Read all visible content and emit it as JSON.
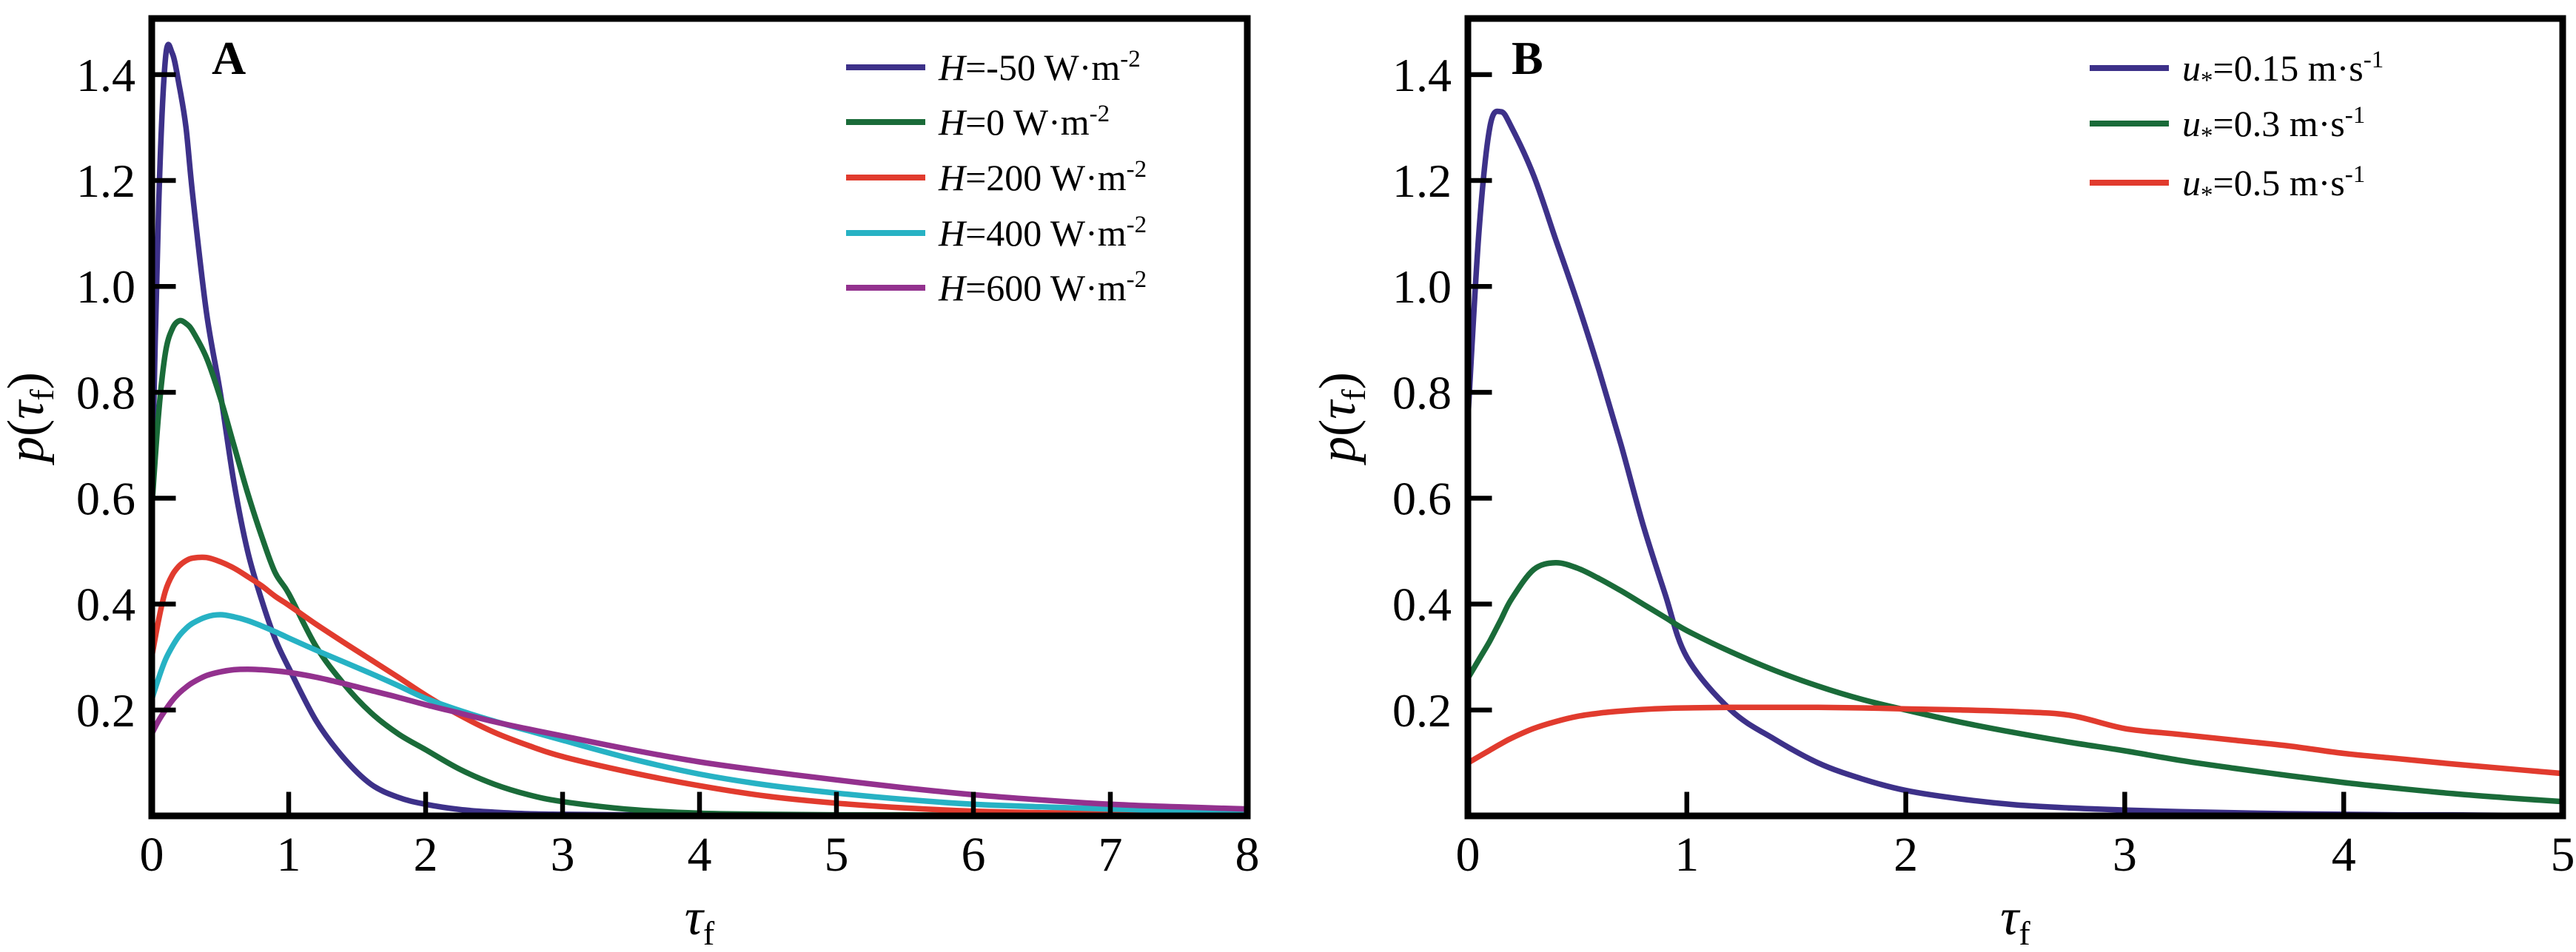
{
  "figure": {
    "background": "#ffffff",
    "frame_color": "#000000",
    "text_color": "#000000"
  },
  "chart_data": [
    {
      "type": "line",
      "panel_label": "A",
      "title": "",
      "xlabel": "τf",
      "ylabel": "p(τf)",
      "xlabel_parts": [
        [
          "i",
          "τ"
        ],
        [
          "sub",
          "f"
        ]
      ],
      "ylabel_parts": [
        [
          "i",
          "p"
        ],
        [
          "n",
          "("
        ],
        [
          "i",
          "τ"
        ],
        [
          "sub",
          "f"
        ],
        [
          "n",
          ")"
        ]
      ],
      "xlim": [
        0,
        8
      ],
      "ylim": [
        0,
        1.506
      ],
      "x_ticks": [
        0,
        1,
        2,
        3,
        4,
        5,
        6,
        7,
        8
      ],
      "x_tick_labels": [
        "0",
        "1",
        "2",
        "3",
        "4",
        "5",
        "6",
        "7",
        "8"
      ],
      "y_ticks": [
        0.2,
        0.4,
        0.6,
        0.8,
        1.0,
        1.2,
        1.4
      ],
      "y_tick_labels": [
        "0.2",
        "0.4",
        "0.6",
        "0.8",
        "1.0",
        "1.2",
        "1.4"
      ],
      "grid": false,
      "legend_position": "top-right-inside",
      "series": [
        {
          "name": "H=-50 W·m⁻²",
          "label_parts": [
            [
              "i",
              "H"
            ],
            [
              "n",
              "=-50 W·m"
            ],
            [
              "sup",
              "-2"
            ]
          ],
          "color": "#3d3189",
          "x": [
            0,
            0.05,
            0.1,
            0.15,
            0.2,
            0.25,
            0.3,
            0.4,
            0.5,
            0.6,
            0.7,
            0.8,
            0.9,
            1.0,
            1.2,
            1.4,
            1.6,
            1.8,
            2.0,
            2.25,
            2.5,
            2.75,
            3.0,
            3.5,
            4.0,
            4.5,
            5.0,
            5.5,
            6.0,
            6.5,
            7.0,
            7.5,
            8.0
          ],
          "y": [
            0.6,
            1.15,
            1.43,
            1.44,
            1.38,
            1.3,
            1.17,
            0.95,
            0.8,
            0.63,
            0.5,
            0.41,
            0.335,
            0.28,
            0.18,
            0.11,
            0.06,
            0.035,
            0.022,
            0.012,
            0.007,
            0.004,
            0.003,
            0.002,
            0.001,
            0.001,
            0.001,
            0.001,
            0.001,
            0.001,
            0.001,
            0.001,
            0.001
          ]
        },
        {
          "name": "H=0 W·m⁻²",
          "label_parts": [
            [
              "i",
              "H"
            ],
            [
              "n",
              "=0 W·m"
            ],
            [
              "sup",
              "-2"
            ]
          ],
          "color": "#1a6b39",
          "x": [
            0,
            0.05,
            0.1,
            0.15,
            0.2,
            0.25,
            0.3,
            0.4,
            0.5,
            0.6,
            0.7,
            0.8,
            0.9,
            1.0,
            1.2,
            1.4,
            1.6,
            1.8,
            2.0,
            2.25,
            2.5,
            2.75,
            3.0,
            3.5,
            4.0,
            4.5,
            5.0,
            5.5,
            6.0,
            6.5,
            7.0,
            7.5,
            8.0
          ],
          "y": [
            0.58,
            0.76,
            0.875,
            0.92,
            0.935,
            0.93,
            0.915,
            0.865,
            0.79,
            0.7,
            0.61,
            0.53,
            0.46,
            0.42,
            0.32,
            0.25,
            0.195,
            0.155,
            0.125,
            0.088,
            0.06,
            0.04,
            0.027,
            0.012,
            0.005,
            0.003,
            0.002,
            0.002,
            0.001,
            0.001,
            0.001,
            0.001,
            0.001
          ]
        },
        {
          "name": "H=200 W·m⁻²",
          "label_parts": [
            [
              "i",
              "H"
            ],
            [
              "n",
              "=200 W·m"
            ],
            [
              "sup",
              "-2"
            ]
          ],
          "color": "#e13b2e",
          "x": [
            0,
            0.05,
            0.1,
            0.15,
            0.2,
            0.25,
            0.3,
            0.4,
            0.5,
            0.6,
            0.7,
            0.8,
            0.9,
            1.0,
            1.2,
            1.4,
            1.6,
            1.8,
            2.0,
            2.25,
            2.5,
            2.75,
            3.0,
            3.5,
            4.0,
            4.5,
            5.0,
            5.5,
            6.0,
            6.5,
            7.0,
            7.5,
            8.0
          ],
          "y": [
            0.3,
            0.37,
            0.425,
            0.455,
            0.472,
            0.482,
            0.487,
            0.488,
            0.48,
            0.468,
            0.452,
            0.435,
            0.415,
            0.398,
            0.362,
            0.328,
            0.295,
            0.262,
            0.228,
            0.19,
            0.158,
            0.133,
            0.112,
            0.082,
            0.057,
            0.037,
            0.024,
            0.015,
            0.009,
            0.006,
            0.005,
            0.004,
            0.003
          ]
        },
        {
          "name": "H=400 W·m⁻²",
          "label_parts": [
            [
              "i",
              "H"
            ],
            [
              "n",
              "=400 W·m"
            ],
            [
              "sup",
              "-2"
            ]
          ],
          "color": "#27b2c4",
          "x": [
            0,
            0.05,
            0.1,
            0.15,
            0.2,
            0.25,
            0.3,
            0.4,
            0.5,
            0.6,
            0.7,
            0.8,
            0.9,
            1.0,
            1.2,
            1.4,
            1.6,
            1.8,
            2.0,
            2.25,
            2.5,
            2.75,
            3.0,
            3.5,
            4.0,
            4.5,
            5.0,
            5.5,
            6.0,
            6.5,
            7.0,
            7.5,
            8.0
          ],
          "y": [
            0.22,
            0.26,
            0.295,
            0.32,
            0.34,
            0.354,
            0.364,
            0.376,
            0.38,
            0.376,
            0.369,
            0.359,
            0.348,
            0.336,
            0.313,
            0.291,
            0.269,
            0.246,
            0.222,
            0.199,
            0.179,
            0.161,
            0.143,
            0.108,
            0.079,
            0.058,
            0.043,
            0.031,
            0.022,
            0.017,
            0.013,
            0.01,
            0.008
          ]
        },
        {
          "name": "H=600 W·m⁻²",
          "label_parts": [
            [
              "i",
              "H"
            ],
            [
              "n",
              "=600 W·m"
            ],
            [
              "sup",
              "-2"
            ]
          ],
          "color": "#93318e",
          "x": [
            0,
            0.05,
            0.1,
            0.15,
            0.2,
            0.25,
            0.3,
            0.4,
            0.5,
            0.6,
            0.7,
            0.8,
            0.9,
            1.0,
            1.2,
            1.4,
            1.6,
            1.8,
            2.0,
            2.25,
            2.5,
            2.75,
            3.0,
            3.5,
            4.0,
            4.5,
            5.0,
            5.5,
            6.0,
            6.5,
            7.0,
            7.5,
            8.0
          ],
          "y": [
            0.155,
            0.18,
            0.2,
            0.218,
            0.232,
            0.243,
            0.252,
            0.265,
            0.272,
            0.276,
            0.277,
            0.276,
            0.274,
            0.271,
            0.262,
            0.25,
            0.237,
            0.224,
            0.21,
            0.194,
            0.178,
            0.164,
            0.151,
            0.125,
            0.102,
            0.084,
            0.068,
            0.053,
            0.04,
            0.03,
            0.022,
            0.017,
            0.013
          ]
        }
      ]
    },
    {
      "type": "line",
      "panel_label": "B",
      "title": "",
      "xlabel": "τf",
      "ylabel": "p(τf)",
      "xlabel_parts": [
        [
          "i",
          "τ"
        ],
        [
          "sub",
          "f"
        ]
      ],
      "ylabel_parts": [
        [
          "i",
          "p"
        ],
        [
          "n",
          "("
        ],
        [
          "i",
          "τ"
        ],
        [
          "sub",
          "f"
        ],
        [
          "n",
          ")"
        ]
      ],
      "xlim": [
        0,
        5
      ],
      "ylim": [
        0,
        1.506
      ],
      "x_ticks": [
        0,
        1,
        2,
        3,
        4,
        5
      ],
      "x_tick_labels": [
        "0",
        "1",
        "2",
        "3",
        "4",
        "5"
      ],
      "y_ticks": [
        0.2,
        0.4,
        0.6,
        0.8,
        1.0,
        1.2,
        1.4
      ],
      "y_tick_labels": [
        "0.2",
        "0.4",
        "0.6",
        "0.8",
        "1.0",
        "1.2",
        "1.4"
      ],
      "grid": false,
      "legend_position": "top-right-inside",
      "series": [
        {
          "name": "u∗=0.15 m·s⁻¹",
          "label_parts": [
            [
              "i",
              "u"
            ],
            [
              "sub",
              "*"
            ],
            [
              "n",
              "=0.15 m·s"
            ],
            [
              "sup",
              "-1"
            ]
          ],
          "color": "#3d3189",
          "x": [
            0,
            0.05,
            0.1,
            0.15,
            0.2,
            0.3,
            0.4,
            0.5,
            0.6,
            0.7,
            0.8,
            0.9,
            1.0,
            1.2,
            1.4,
            1.6,
            1.8,
            2.0,
            2.25,
            2.5,
            2.75,
            3.0,
            3.25,
            3.5,
            3.75,
            4.0,
            4.25,
            4.5,
            4.75,
            5.0
          ],
          "y": [
            0.75,
            1.1,
            1.3,
            1.33,
            1.3,
            1.21,
            1.09,
            0.97,
            0.84,
            0.7,
            0.55,
            0.42,
            0.3,
            0.2,
            0.145,
            0.1,
            0.07,
            0.048,
            0.032,
            0.021,
            0.015,
            0.011,
            0.008,
            0.006,
            0.004,
            0.003,
            0.002,
            0.002,
            0.001,
            0.001
          ]
        },
        {
          "name": "u∗=0.3 m·s⁻¹",
          "label_parts": [
            [
              "i",
              "u"
            ],
            [
              "sub",
              "*"
            ],
            [
              "n",
              "=0.3 m·s"
            ],
            [
              "sup",
              "-1"
            ]
          ],
          "color": "#1a6b39",
          "x": [
            0,
            0.05,
            0.1,
            0.15,
            0.2,
            0.3,
            0.4,
            0.5,
            0.6,
            0.7,
            0.8,
            0.9,
            1.0,
            1.2,
            1.4,
            1.6,
            1.8,
            2.0,
            2.25,
            2.5,
            2.75,
            3.0,
            3.25,
            3.5,
            3.75,
            4.0,
            4.25,
            4.5,
            4.75,
            5.0
          ],
          "y": [
            0.26,
            0.295,
            0.33,
            0.37,
            0.41,
            0.465,
            0.478,
            0.468,
            0.448,
            0.425,
            0.4,
            0.375,
            0.35,
            0.31,
            0.275,
            0.245,
            0.22,
            0.2,
            0.177,
            0.157,
            0.139,
            0.123,
            0.105,
            0.09,
            0.076,
            0.063,
            0.052,
            0.042,
            0.034,
            0.027
          ]
        },
        {
          "name": "u∗=0.5 m·s⁻¹",
          "label_parts": [
            [
              "i",
              "u"
            ],
            [
              "sub",
              "*"
            ],
            [
              "n",
              "=0.5 m·s"
            ],
            [
              "sup",
              "-1"
            ]
          ],
          "color": "#e13b2e",
          "x": [
            0,
            0.05,
            0.1,
            0.15,
            0.2,
            0.3,
            0.4,
            0.5,
            0.6,
            0.7,
            0.8,
            0.9,
            1.0,
            1.2,
            1.4,
            1.6,
            1.8,
            2.0,
            2.25,
            2.5,
            2.75,
            3.0,
            3.25,
            3.5,
            3.75,
            4.0,
            4.25,
            4.5,
            4.75,
            5.0
          ],
          "y": [
            0.1,
            0.112,
            0.124,
            0.136,
            0.147,
            0.165,
            0.178,
            0.188,
            0.194,
            0.198,
            0.201,
            0.203,
            0.204,
            0.205,
            0.205,
            0.205,
            0.204,
            0.202,
            0.2,
            0.197,
            0.19,
            0.165,
            0.154,
            0.143,
            0.132,
            0.118,
            0.108,
            0.098,
            0.089,
            0.08
          ]
        }
      ]
    }
  ]
}
